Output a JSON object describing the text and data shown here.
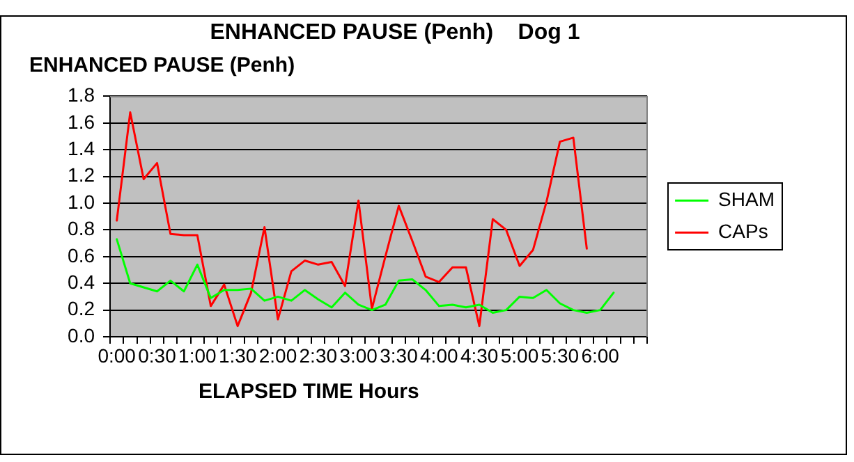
{
  "chart_data": {
    "type": "line",
    "title": "ENHANCED PAUSE (Penh)    Dog 1",
    "ylabel": "ENHANCED PAUSE (Penh)",
    "xlabel": "ELAPSED TIME Hours",
    "categories": [
      "0:00",
      null,
      null,
      "0:30",
      null,
      null,
      "1:00",
      null,
      null,
      "1:30",
      null,
      null,
      "2:00",
      null,
      null,
      "2:30",
      null,
      null,
      "3:00",
      null,
      null,
      "3:30",
      null,
      null,
      "4:00",
      null,
      null,
      "4:30",
      null,
      null,
      "5:00",
      null,
      null,
      "5:30",
      null,
      null,
      "6:00",
      null,
      null,
      null
    ],
    "series": [
      {
        "name": "SHAM",
        "color": "#00ff00",
        "values": [
          0.73,
          0.4,
          0.37,
          0.34,
          0.42,
          0.34,
          0.54,
          0.29,
          0.35,
          0.35,
          0.36,
          0.27,
          0.3,
          0.27,
          0.35,
          0.28,
          0.22,
          0.33,
          0.24,
          0.2,
          0.24,
          0.42,
          0.43,
          0.35,
          0.23,
          0.24,
          0.22,
          0.24,
          0.18,
          0.2,
          0.3,
          0.29,
          0.35,
          0.25,
          0.2,
          0.18,
          0.2,
          0.33,
          null,
          null
        ]
      },
      {
        "name": "CAPs",
        "color": "#ff0000",
        "values": [
          0.87,
          1.68,
          1.18,
          1.3,
          0.77,
          0.76,
          0.76,
          0.23,
          0.39,
          0.08,
          0.33,
          0.82,
          0.13,
          0.49,
          0.57,
          0.54,
          0.56,
          0.38,
          1.02,
          0.21,
          0.6,
          0.98,
          0.72,
          0.45,
          0.41,
          0.52,
          0.52,
          0.08,
          0.88,
          0.8,
          0.53,
          0.65,
          1.01,
          1.46,
          1.49,
          0.66,
          null,
          null,
          null,
          null
        ]
      }
    ],
    "ylim": [
      0,
      1.8
    ],
    "yticks": [
      {
        "value": 0,
        "label": "0.0"
      },
      0.2,
      0.4,
      0.6,
      0.8,
      {
        "value": 1,
        "label": "1.0"
      },
      1.2,
      1.4,
      1.6,
      1.8
    ],
    "grid": "y",
    "legend": "right",
    "marker": "none"
  }
}
